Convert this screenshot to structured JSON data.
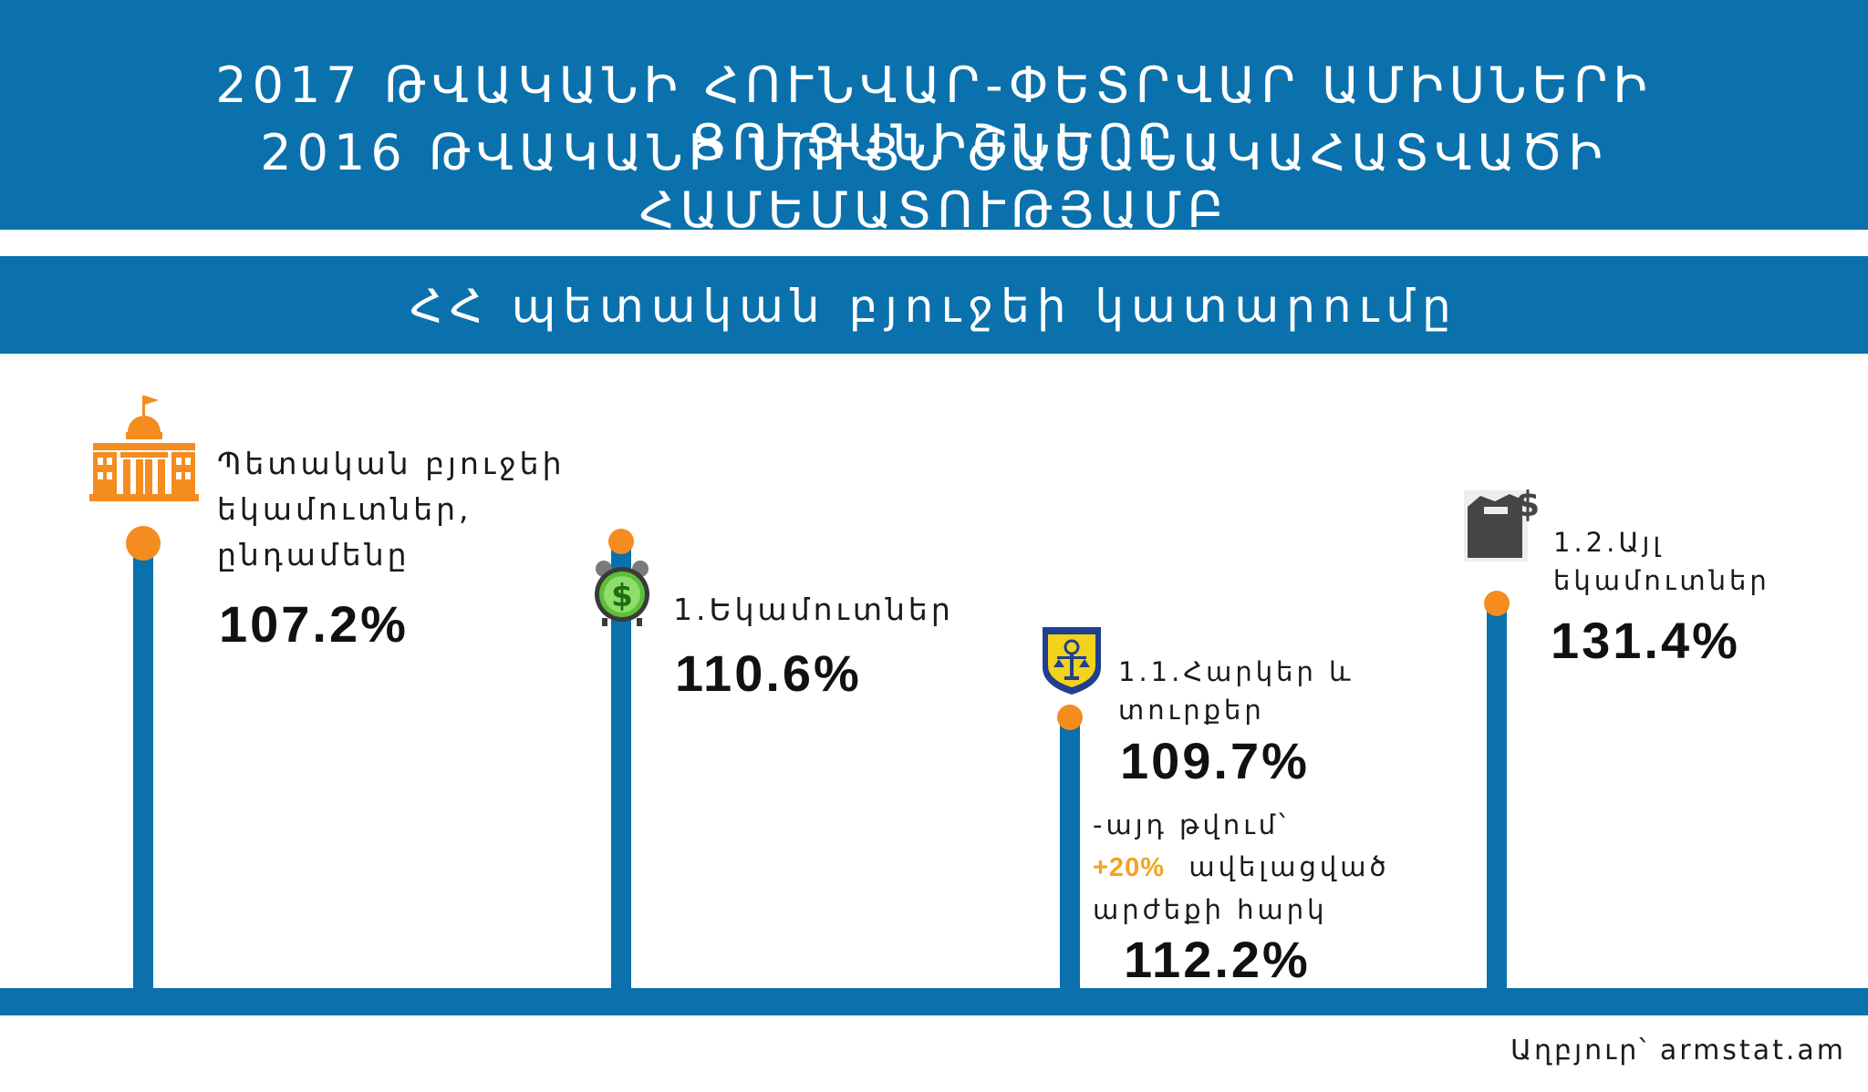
{
  "header": {
    "line1": "2017 ԹՎԱԿԱՆԻ ՀՈՒՆՎԱՐ-ՓԵՏՐՎԱՐ ԱՄԻՍՆԵՐԻ ՑՈՒՑԱՆԻՇՆԵՐԸ",
    "line2": "2016 ԹՎԱԿԱՆԻ ՆՈՒՅՆ ԺԱՄԱՆԱԿԱՀԱՏՎԱԾԻ ՀԱՄԵՄԱՏՈՒԹՅԱՄԲ"
  },
  "subheader": "ՀՀ պետական բյուջեի կատարումը",
  "items": [
    {
      "label1": "Պետական բյուջեի",
      "label2": "եկամուտներ,",
      "label3": "ընդամենը",
      "value": "107.2%",
      "icon": "government-building-icon"
    },
    {
      "label1": "1.Եկամուտներ",
      "value": "110.6%",
      "icon": "money-clock-icon"
    },
    {
      "label1": "1.1.Հարկեր և",
      "label2": "տուրքեր",
      "value": "109.7%",
      "icon": "tax-emblem-icon",
      "note1": "-այդ թվում՝",
      "note_highlight": "+20%",
      "note2": "ավելացված",
      "note3": "արժեքի հարկ",
      "note_value": "112.2%"
    },
    {
      "label1": "1.2.Այլ",
      "label2": "եկամուտներ",
      "value": "131.4%",
      "icon": "box-dollar-icon"
    }
  ],
  "source": "Աղբյուր՝ armstat.am",
  "chart_data": {
    "type": "bar",
    "title": "ՀՀ պետական բյուջեի կատարումը",
    "categories": [
      "Պետական բյուջեի եկամուտներ, ընդամենը",
      "1.Եկամուտներ",
      "1.1.Հարկեր և տուրքեր",
      "1.2.Այլ եկամուտներ"
    ],
    "values": [
      107.2,
      110.6,
      109.7,
      131.4
    ],
    "extra": {
      "ավելացված արժեքի հարկ": 112.2
    }
  },
  "colors": {
    "primary": "#0a71ad",
    "accent": "#f48c1f",
    "highlight": "#f4a21e"
  }
}
